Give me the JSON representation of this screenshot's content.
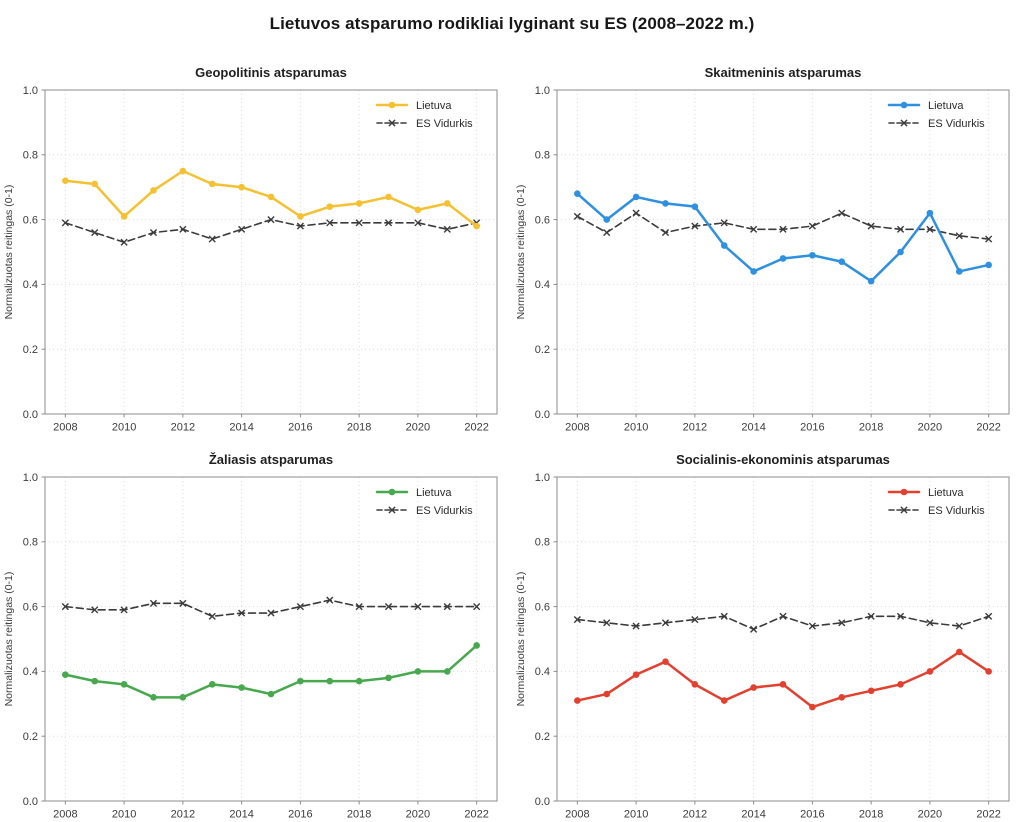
{
  "page_title": "Lietuvos atsparumo rodikliai lyginant su ES (2008–2022 m.)",
  "axis_defaults": {
    "ylabel": "Normalizuotas reitingas (0-1)",
    "grid_color": "#dcdcdc",
    "spine_color": "#8c8c8c",
    "tick_label_color": "#3c3c3c"
  },
  "legend_labels": [
    "Lietuva",
    "ES Vidurkis"
  ],
  "chart_data": [
    {
      "type": "line",
      "title": "Geopolitinis atsparumas",
      "x": [
        2008,
        2009,
        2010,
        2011,
        2012,
        2013,
        2014,
        2015,
        2016,
        2017,
        2018,
        2019,
        2020,
        2021,
        2022
      ],
      "series": [
        {
          "name": "Lietuva",
          "color": "#F5C132",
          "style": "solid",
          "marker": "circle",
          "values": [
            0.72,
            0.71,
            0.61,
            0.69,
            0.75,
            0.71,
            0.7,
            0.67,
            0.61,
            0.64,
            0.65,
            0.67,
            0.63,
            0.65,
            0.58
          ]
        },
        {
          "name": "ES Vidurkis",
          "color": "#3B3B3B",
          "style": "dashed",
          "marker": "x",
          "values": [
            0.59,
            0.56,
            0.53,
            0.56,
            0.57,
            0.54,
            0.57,
            0.6,
            0.58,
            0.59,
            0.59,
            0.59,
            0.59,
            0.57,
            0.59
          ]
        }
      ],
      "ylabel": "Normalizuotas reitingas (0-1)",
      "ylim": [
        0.0,
        1.0
      ],
      "yticks": [
        0.0,
        0.2,
        0.4,
        0.6,
        0.8,
        1.0
      ],
      "xticks": [
        2008,
        2010,
        2012,
        2014,
        2016,
        2018,
        2020,
        2022
      ],
      "grid": true,
      "legend_position": "upper right"
    },
    {
      "type": "line",
      "title": "Skaitmeninis atsparumas",
      "x": [
        2008,
        2009,
        2010,
        2011,
        2012,
        2013,
        2014,
        2015,
        2016,
        2017,
        2018,
        2019,
        2020,
        2021,
        2022
      ],
      "series": [
        {
          "name": "Lietuva",
          "color": "#2F8FE0",
          "style": "solid",
          "marker": "circle",
          "values": [
            0.68,
            0.6,
            0.67,
            0.65,
            0.64,
            0.52,
            0.44,
            0.48,
            0.49,
            0.47,
            0.41,
            0.5,
            0.62,
            0.44,
            0.46
          ]
        },
        {
          "name": "ES Vidurkis",
          "color": "#3B3B3B",
          "style": "dashed",
          "marker": "x",
          "values": [
            0.61,
            0.56,
            0.62,
            0.56,
            0.58,
            0.59,
            0.57,
            0.57,
            0.58,
            0.62,
            0.58,
            0.57,
            0.57,
            0.55,
            0.54
          ]
        }
      ],
      "ylabel": "Normalizuotas reitingas (0-1)",
      "ylim": [
        0.0,
        1.0
      ],
      "yticks": [
        0.0,
        0.2,
        0.4,
        0.6,
        0.8,
        1.0
      ],
      "xticks": [
        2008,
        2010,
        2012,
        2014,
        2016,
        2018,
        2020,
        2022
      ],
      "grid": true,
      "legend_position": "upper right"
    },
    {
      "type": "line",
      "title": "Žaliasis atsparumas",
      "x": [
        2008,
        2009,
        2010,
        2011,
        2012,
        2013,
        2014,
        2015,
        2016,
        2017,
        2018,
        2019,
        2020,
        2021,
        2022
      ],
      "series": [
        {
          "name": "Lietuva",
          "color": "#47A84E",
          "style": "solid",
          "marker": "circle",
          "values": [
            0.39,
            0.37,
            0.36,
            0.32,
            0.32,
            0.36,
            0.35,
            0.33,
            0.37,
            0.37,
            0.37,
            0.38,
            0.4,
            0.4,
            0.48
          ]
        },
        {
          "name": "ES Vidurkis",
          "color": "#3B3B3B",
          "style": "dashed",
          "marker": "x",
          "values": [
            0.6,
            0.59,
            0.59,
            0.61,
            0.61,
            0.57,
            0.58,
            0.58,
            0.6,
            0.62,
            0.6,
            0.6,
            0.6,
            0.6,
            0.6
          ]
        }
      ],
      "ylabel": "Normalizuotas reitingas (0-1)",
      "ylim": [
        0.0,
        1.0
      ],
      "yticks": [
        0.0,
        0.2,
        0.4,
        0.6,
        0.8,
        1.0
      ],
      "xticks": [
        2008,
        2010,
        2012,
        2014,
        2016,
        2018,
        2020,
        2022
      ],
      "grid": true,
      "legend_position": "upper right"
    },
    {
      "type": "line",
      "title": "Socialinis-ekonominis atsparumas",
      "x": [
        2008,
        2009,
        2010,
        2011,
        2012,
        2013,
        2014,
        2015,
        2016,
        2017,
        2018,
        2019,
        2020,
        2021,
        2022
      ],
      "series": [
        {
          "name": "Lietuva",
          "color": "#E3402F",
          "style": "solid",
          "marker": "circle",
          "values": [
            0.31,
            0.33,
            0.39,
            0.43,
            0.36,
            0.31,
            0.35,
            0.36,
            0.29,
            0.32,
            0.34,
            0.36,
            0.4,
            0.46,
            0.4
          ]
        },
        {
          "name": "ES Vidurkis",
          "color": "#3B3B3B",
          "style": "dashed",
          "marker": "x",
          "values": [
            0.56,
            0.55,
            0.54,
            0.55,
            0.56,
            0.57,
            0.53,
            0.57,
            0.54,
            0.55,
            0.57,
            0.57,
            0.55,
            0.54,
            0.57
          ]
        }
      ],
      "ylabel": "Normalizuotas reitingas (0-1)",
      "ylim": [
        0.0,
        1.0
      ],
      "yticks": [
        0.0,
        0.2,
        0.4,
        0.6,
        0.8,
        1.0
      ],
      "xticks": [
        2008,
        2010,
        2012,
        2014,
        2016,
        2018,
        2020,
        2022
      ],
      "grid": true,
      "legend_position": "upper right"
    }
  ]
}
